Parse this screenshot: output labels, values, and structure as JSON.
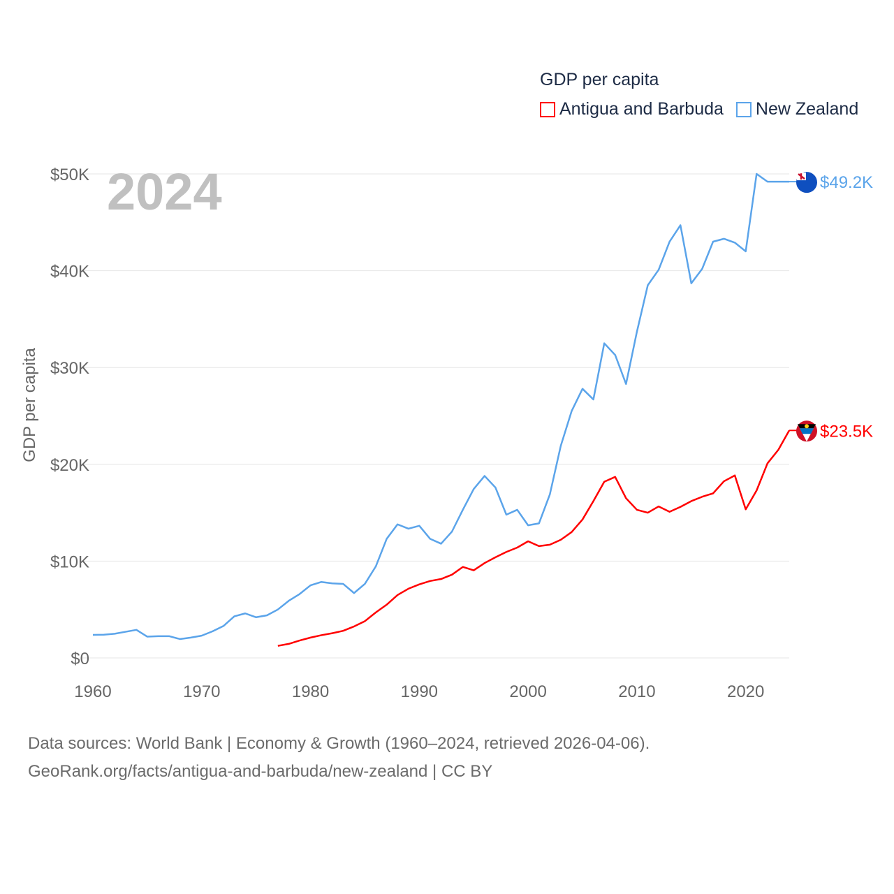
{
  "chart_data": {
    "type": "line",
    "title": "GDP per capita",
    "year_overlay": "2024",
    "ylabel": "GDP per capita",
    "xlabel": "",
    "xlim": [
      1960,
      2024
    ],
    "ylim": [
      0,
      50000
    ],
    "x_ticks": [
      1960,
      1970,
      1980,
      1990,
      2000,
      2010,
      2020
    ],
    "x_tick_labels": [
      "1960",
      "1970",
      "1980",
      "1990",
      "2000",
      "2010",
      "2020"
    ],
    "y_ticks": [
      0,
      10000,
      20000,
      30000,
      40000,
      50000
    ],
    "y_tick_labels": [
      "$0",
      "$10K",
      "$20K",
      "$30K",
      "$40K",
      "$50K"
    ],
    "grid": true,
    "legend_position": "top-right",
    "series": [
      {
        "name": "Antigua and Barbuda",
        "color": "#ff0000",
        "end_label": "$23.5K",
        "start_year": 1977,
        "values": [
          1250,
          1450,
          1800,
          2100,
          2350,
          2550,
          2800,
          3250,
          3800,
          4700,
          5500,
          6500,
          7150,
          7600,
          7950,
          8150,
          8600,
          9400,
          9050,
          9800,
          10400,
          10950,
          11400,
          12050,
          11550,
          11700,
          12200,
          13000,
          14300,
          16200,
          18200,
          18700,
          16500,
          15300,
          15000,
          15650,
          15100,
          15600,
          16200,
          16650,
          17000,
          18250,
          18850,
          15350,
          17300,
          20100,
          21500,
          23500
        ]
      },
      {
        "name": "New Zealand",
        "color": "#5ba4ea",
        "end_label": "$49.2K",
        "start_year": 1960,
        "values": [
          2380,
          2400,
          2500,
          2700,
          2900,
          2200,
          2250,
          2250,
          1950,
          2100,
          2300,
          2750,
          3300,
          4300,
          4600,
          4200,
          4400,
          5000,
          5900,
          6600,
          7500,
          7850,
          7700,
          7650,
          6700,
          7650,
          9450,
          12300,
          13800,
          13350,
          13650,
          12300,
          11800,
          13050,
          15300,
          17450,
          18800,
          17600,
          14800,
          15300,
          13700,
          13900,
          16900,
          21900,
          25500,
          27800,
          26700,
          32500,
          31300,
          28300,
          33700,
          38500,
          40100,
          43000,
          44700,
          38700,
          40200,
          43000,
          43300,
          42900,
          42000,
          50000,
          49200,
          49200,
          49200
        ]
      }
    ]
  },
  "source": {
    "line1": "Data sources: World Bank | Economy & Growth (1960–2024, retrieved 2026-04-06).",
    "line2": "GeoRank.org/facts/antigua-and-barbuda/new-zealand | CC BY"
  }
}
